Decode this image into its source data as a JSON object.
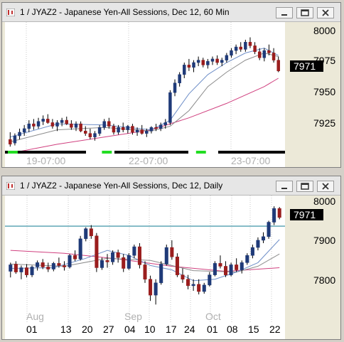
{
  "colors": {
    "bull": "#1f3a78",
    "bear": "#9a1d1d",
    "ma_short": "#6f8fc8",
    "ma_mid": "#8c8c8c",
    "ma_long": "#d0407f",
    "hline": "#2a8a9e",
    "session_bar": "#000000",
    "session_mark": "#22dd22"
  },
  "windows": [
    {
      "title": "1 / JYAZ2 - Japanese Yen-All Sessions, Dec 12, 60 Min",
      "controls": [
        "minimize-icon",
        "restore-icon",
        "close-icon"
      ],
      "last_price": "7971",
      "price_axis": [
        "8000",
        "7975",
        "7950",
        "7925"
      ],
      "time_labels": [
        "19-07:00",
        "22-07:00",
        "23-07:00"
      ]
    },
    {
      "title": "1 / JYAZ2 - Japanese Yen-All Sessions, Dec 12, Daily",
      "controls": [
        "minimize-icon",
        "restore-icon",
        "close-icon"
      ],
      "last_price": "7971",
      "price_axis": [
        "8000",
        "7900",
        "7800"
      ],
      "month_labels": [
        "Aug",
        "Sep",
        "Oct"
      ],
      "day_labels": [
        "01",
        "13",
        "20",
        "27",
        "04",
        "10",
        "17",
        "24",
        "01",
        "08",
        "15",
        "22"
      ]
    }
  ],
  "chart_data": [
    {
      "type": "candlestick",
      "title": "1 / JYAZ2 - Japanese Yen-All Sessions, Dec 12, 60 Min",
      "ylim": [
        7904,
        8007
      ],
      "y_ticks": [
        8000,
        7975,
        7950,
        7925
      ],
      "last_price": 7971,
      "candles": [
        [
          7914,
          7920,
          7908,
          7910
        ],
        [
          7911,
          7919,
          7909,
          7917
        ],
        [
          7917,
          7923,
          7914,
          7920
        ],
        [
          7920,
          7926,
          7917,
          7923
        ],
        [
          7923,
          7930,
          7920,
          7927
        ],
        [
          7927,
          7931,
          7922,
          7925
        ],
        [
          7925,
          7932,
          7923,
          7929
        ],
        [
          7929,
          7934,
          7926,
          7931
        ],
        [
          7931,
          7935,
          7927,
          7928
        ],
        [
          7928,
          7931,
          7923,
          7925
        ],
        [
          7925,
          7930,
          7921,
          7928
        ],
        [
          7928,
          7932,
          7925,
          7930
        ],
        [
          7930,
          7933,
          7926,
          7927
        ],
        [
          7927,
          7930,
          7922,
          7924
        ],
        [
          7924,
          7929,
          7921,
          7927
        ],
        [
          7927,
          7929,
          7920,
          7921
        ],
        [
          7921,
          7925,
          7917,
          7919
        ],
        [
          7919,
          7923,
          7914,
          7916
        ],
        [
          7916,
          7921,
          7913,
          7919
        ],
        [
          7919,
          7926,
          7917,
          7924
        ],
        [
          7924,
          7931,
          7922,
          7929
        ],
        [
          7929,
          7932,
          7923,
          7925
        ],
        [
          7925,
          7927,
          7918,
          7920
        ],
        [
          7920,
          7926,
          7918,
          7924
        ],
        [
          7924,
          7928,
          7920,
          7922
        ],
        [
          7922,
          7926,
          7919,
          7925
        ],
        [
          7925,
          7927,
          7918,
          7920
        ],
        [
          7920,
          7924,
          7917,
          7922
        ],
        [
          7922,
          7926,
          7918,
          7919
        ],
        [
          7919,
          7923,
          7916,
          7921
        ],
        [
          7921,
          7925,
          7919,
          7924
        ],
        [
          7924,
          7927,
          7921,
          7923
        ],
        [
          7923,
          7928,
          7921,
          7926
        ],
        [
          7926,
          7931,
          7923,
          7928
        ],
        [
          7928,
          7955,
          7926,
          7953
        ],
        [
          7953,
          7964,
          7950,
          7961
        ],
        [
          7961,
          7970,
          7958,
          7968
        ],
        [
          7968,
          7978,
          7965,
          7976
        ],
        [
          7976,
          7981,
          7971,
          7974
        ],
        [
          7974,
          7980,
          7970,
          7978
        ],
        [
          7978,
          7983,
          7975,
          7980
        ],
        [
          7980,
          7982,
          7974,
          7976
        ],
        [
          7976,
          7981,
          7973,
          7979
        ],
        [
          7979,
          7983,
          7976,
          7981
        ],
        [
          7981,
          7984,
          7976,
          7978
        ],
        [
          7978,
          7982,
          7975,
          7980
        ],
        [
          7980,
          7986,
          7978,
          7984
        ],
        [
          7984,
          7990,
          7982,
          7988
        ],
        [
          7988,
          7993,
          7985,
          7991
        ],
        [
          7991,
          7995,
          7987,
          7989
        ],
        [
          7989,
          7997,
          7987,
          7995
        ],
        [
          7995,
          7999,
          7990,
          7992
        ],
        [
          7992,
          7995,
          7985,
          7987
        ],
        [
          7987,
          7990,
          7980,
          7982
        ],
        [
          7982,
          7990,
          7979,
          7988
        ],
        [
          7988,
          7993,
          7984,
          7986
        ],
        [
          7986,
          7990,
          7978,
          7980
        ],
        [
          7980,
          7983,
          7970,
          7971
        ]
      ],
      "ma_short": [
        [
          0,
          7916
        ],
        [
          10,
          7927
        ],
        [
          20,
          7926
        ],
        [
          30,
          7922
        ],
        [
          34,
          7930
        ],
        [
          38,
          7952
        ],
        [
          42,
          7968
        ],
        [
          46,
          7978
        ],
        [
          50,
          7986
        ],
        [
          54,
          7990
        ],
        [
          57,
          7984
        ]
      ],
      "ma_mid": [
        [
          0,
          7912
        ],
        [
          10,
          7922
        ],
        [
          20,
          7924
        ],
        [
          30,
          7921
        ],
        [
          34,
          7925
        ],
        [
          38,
          7938
        ],
        [
          42,
          7958
        ],
        [
          46,
          7970
        ],
        [
          50,
          7980
        ],
        [
          54,
          7986
        ],
        [
          57,
          7983
        ]
      ],
      "ma_long": [
        [
          2,
          7904
        ],
        [
          10,
          7910
        ],
        [
          20,
          7916
        ],
        [
          30,
          7922
        ],
        [
          38,
          7932
        ],
        [
          46,
          7944
        ],
        [
          54,
          7958
        ],
        [
          57,
          7965
        ]
      ],
      "session_marks": [
        [
          0,
          2
        ],
        [
          20,
          22
        ],
        [
          40,
          42
        ]
      ]
    },
    {
      "type": "candlestick",
      "title": "1 / JYAZ2 - Japanese Yen-All Sessions, Dec 12, Daily",
      "ylim": [
        7705,
        8020
      ],
      "y_ticks": [
        8000,
        7900,
        7800
      ],
      "last_price": 7971,
      "hline": 7947,
      "candles": [
        [
          7822,
          7846,
          7805,
          7840
        ],
        [
          7842,
          7850,
          7815,
          7820
        ],
        [
          7820,
          7838,
          7800,
          7832
        ],
        [
          7832,
          7842,
          7805,
          7812
        ],
        [
          7812,
          7838,
          7806,
          7834
        ],
        [
          7834,
          7852,
          7824,
          7846
        ],
        [
          7846,
          7856,
          7828,
          7834
        ],
        [
          7834,
          7846,
          7820,
          7828
        ],
        [
          7828,
          7848,
          7822,
          7844
        ],
        [
          7844,
          7860,
          7832,
          7838
        ],
        [
          7838,
          7850,
          7824,
          7834
        ],
        [
          7834,
          7870,
          7830,
          7866
        ],
        [
          7866,
          7880,
          7850,
          7856
        ],
        [
          7856,
          7920,
          7852,
          7912
        ],
        [
          7912,
          7944,
          7905,
          7940
        ],
        [
          7940,
          7950,
          7912,
          7920
        ],
        [
          7920,
          7928,
          7820,
          7832
        ],
        [
          7832,
          7860,
          7826,
          7852
        ],
        [
          7852,
          7870,
          7832,
          7848
        ],
        [
          7848,
          7880,
          7840,
          7874
        ],
        [
          7874,
          7882,
          7846,
          7860
        ],
        [
          7860,
          7870,
          7820,
          7830
        ],
        [
          7830,
          7872,
          7826,
          7866
        ],
        [
          7866,
          7896,
          7858,
          7890
        ],
        [
          7890,
          7900,
          7830,
          7840
        ],
        [
          7840,
          7850,
          7790,
          7800
        ],
        [
          7800,
          7810,
          7740,
          7756
        ],
        [
          7756,
          7800,
          7730,
          7790
        ],
        [
          7790,
          7850,
          7785,
          7842
        ],
        [
          7842,
          7896,
          7838,
          7888
        ],
        [
          7888,
          7908,
          7854,
          7862
        ],
        [
          7862,
          7872,
          7806,
          7812
        ],
        [
          7812,
          7830,
          7790,
          7800
        ],
        [
          7800,
          7812,
          7772,
          7782
        ],
        [
          7782,
          7800,
          7768,
          7786
        ],
        [
          7786,
          7800,
          7758,
          7766
        ],
        [
          7766,
          7790,
          7760,
          7784
        ],
        [
          7784,
          7820,
          7780,
          7812
        ],
        [
          7812,
          7850,
          7808,
          7844
        ],
        [
          7844,
          7866,
          7830,
          7836
        ],
        [
          7836,
          7850,
          7806,
          7812
        ],
        [
          7812,
          7846,
          7808,
          7840
        ],
        [
          7840,
          7858,
          7820,
          7826
        ],
        [
          7826,
          7852,
          7816,
          7846
        ],
        [
          7846,
          7872,
          7840,
          7866
        ],
        [
          7866,
          7896,
          7858,
          7888
        ],
        [
          7888,
          7916,
          7880,
          7908
        ],
        [
          7908,
          7930,
          7900,
          7918
        ],
        [
          7918,
          7962,
          7912,
          7958
        ],
        [
          7958,
          8002,
          7950,
          7996
        ],
        [
          7996,
          8000,
          7966,
          7971
        ]
      ],
      "ma_short": [
        [
          0,
          7830
        ],
        [
          8,
          7832
        ],
        [
          14,
          7858
        ],
        [
          18,
          7880
        ],
        [
          22,
          7866
        ],
        [
          26,
          7838
        ],
        [
          30,
          7826
        ],
        [
          34,
          7796
        ],
        [
          38,
          7800
        ],
        [
          42,
          7820
        ],
        [
          46,
          7846
        ],
        [
          50,
          7910
        ]
      ],
      "ma_mid": [
        [
          0,
          7842
        ],
        [
          10,
          7836
        ],
        [
          18,
          7858
        ],
        [
          26,
          7852
        ],
        [
          34,
          7824
        ],
        [
          42,
          7820
        ],
        [
          46,
          7836
        ],
        [
          50,
          7870
        ]
      ],
      "ma_long": [
        [
          0,
          7880
        ],
        [
          10,
          7872
        ],
        [
          20,
          7856
        ],
        [
          30,
          7836
        ],
        [
          40,
          7822
        ],
        [
          50,
          7832
        ]
      ]
    }
  ]
}
